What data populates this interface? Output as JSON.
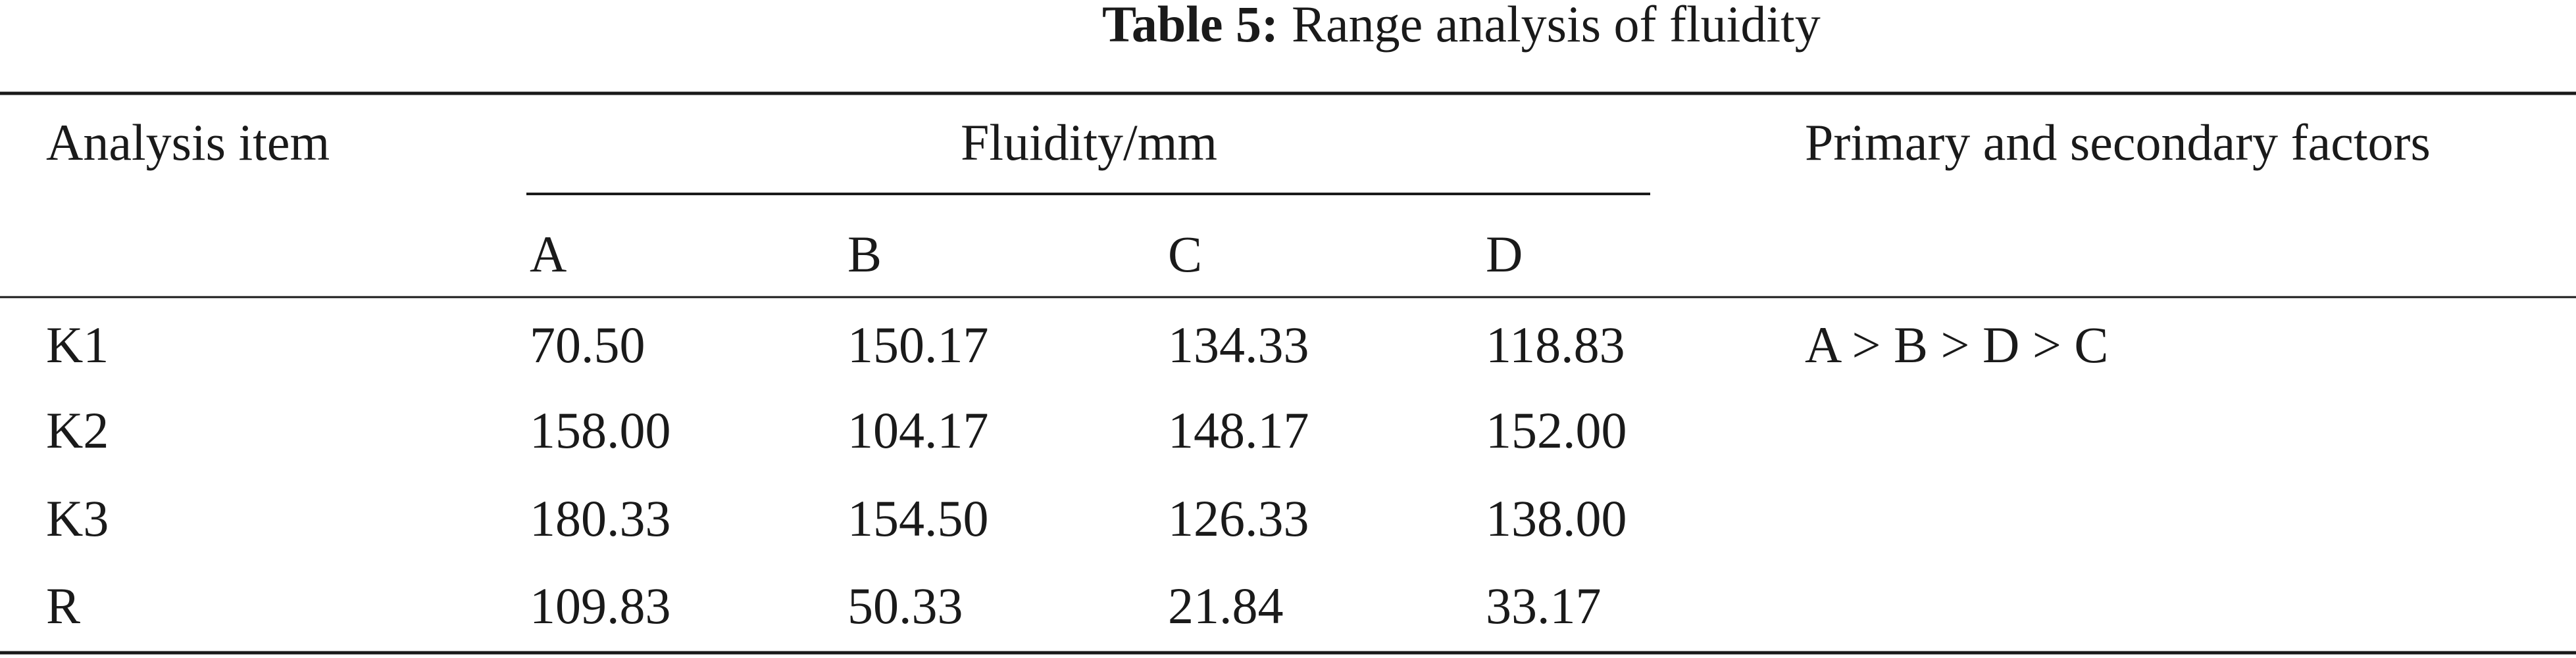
{
  "table": {
    "caption_label": "Table 5:",
    "caption_text": "Range analysis of fluidity",
    "header": {
      "item": "Analysis item",
      "group": "Fluidity/mm",
      "factors": "Primary and secondary factors",
      "columns": [
        "A",
        "B",
        "C",
        "D"
      ]
    },
    "rows": [
      [
        "K1",
        "70.50",
        "150.17",
        "134.33",
        "118.83",
        "A > B > D > C"
      ],
      [
        "K2",
        "158.00",
        "104.17",
        "148.17",
        "152.00",
        null
      ],
      [
        "K3",
        "180.33",
        "154.50",
        "126.33",
        "138.00",
        null
      ],
      [
        "R",
        "109.83",
        "50.33",
        "21.84",
        "33.17",
        null
      ]
    ]
  }
}
